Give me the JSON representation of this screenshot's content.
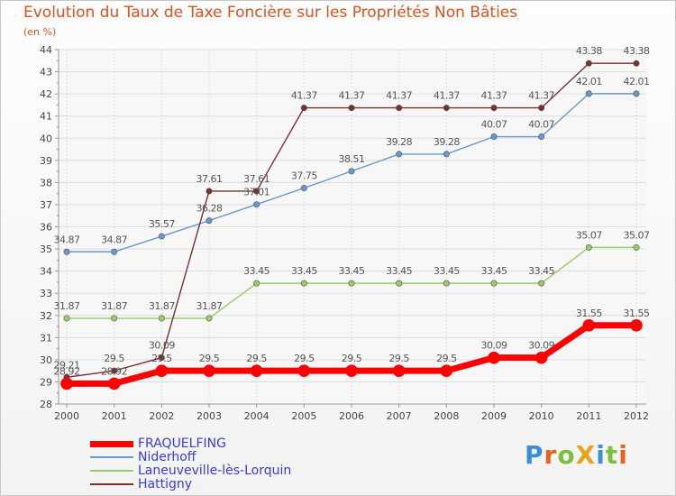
{
  "chart_data": {
    "type": "line",
    "title": "Evolution du Taux de Taxe Foncière sur les Propriétés Non Bâties",
    "subtitle": "(en %)",
    "categories": [
      "2000",
      "2001",
      "2002",
      "2003",
      "2004",
      "2005",
      "2006",
      "2007",
      "2008",
      "2009",
      "2010",
      "2011",
      "2012"
    ],
    "yticks": [
      28,
      29,
      30,
      31,
      32,
      33,
      34,
      35,
      36,
      37,
      38,
      39,
      40,
      41,
      42,
      43,
      44
    ],
    "ylim": [
      28,
      44
    ],
    "series": [
      {
        "name": "FRAQUELFING",
        "color": "#ff0000",
        "width": 7,
        "values": [
          28.92,
          28.92,
          29.5,
          29.5,
          29.5,
          29.5,
          29.5,
          29.5,
          29.5,
          30.09,
          30.09,
          31.55,
          31.55
        ],
        "labels": [
          "28.92",
          "28.92",
          "29.5",
          "29.5",
          "29.5",
          "29.5",
          "29.5",
          "29.5",
          "29.5",
          "30.09",
          "30.09",
          "31.55",
          "31.55"
        ]
      },
      {
        "name": "Niderhoff",
        "color": "#6699cc",
        "width": 1.4,
        "values": [
          34.87,
          34.87,
          35.57,
          36.28,
          37.01,
          37.75,
          38.51,
          39.28,
          39.28,
          40.07,
          40.07,
          42.01,
          42.01
        ],
        "labels": [
          "34.87",
          "34.87",
          "35.57",
          "36.28",
          "37.01",
          "37.75",
          "38.51",
          "39.28",
          "39.28",
          "40.07",
          "40.07",
          "42.01",
          "42.01"
        ]
      },
      {
        "name": "Laneuveville-lès-Lorquin",
        "color": "#99cc66",
        "width": 1.4,
        "values": [
          31.87,
          31.87,
          31.87,
          31.87,
          33.45,
          33.45,
          33.45,
          33.45,
          33.45,
          33.45,
          33.45,
          35.07,
          35.07
        ],
        "labels": [
          "31.87",
          "31.87",
          "31.87",
          "31.87",
          "33.45",
          "33.45",
          "33.45",
          "33.45",
          "33.45",
          "33.45",
          "33.45",
          "35.07",
          "35.07"
        ]
      },
      {
        "name": "Hattigny",
        "color": "#7a3030",
        "width": 1.4,
        "values": [
          29.21,
          29.5,
          30.09,
          37.61,
          37.61,
          41.37,
          41.37,
          41.37,
          41.37,
          41.37,
          41.37,
          43.38,
          43.38
        ],
        "labels": [
          "29.21",
          "29.5",
          "30.09",
          "37.61",
          "37.61",
          "41.37",
          "41.37",
          "41.37",
          "41.37",
          "41.37",
          "41.37",
          "43.38",
          "43.38"
        ]
      }
    ],
    "grid": true
  },
  "logo": {
    "text": "ProXiti"
  }
}
